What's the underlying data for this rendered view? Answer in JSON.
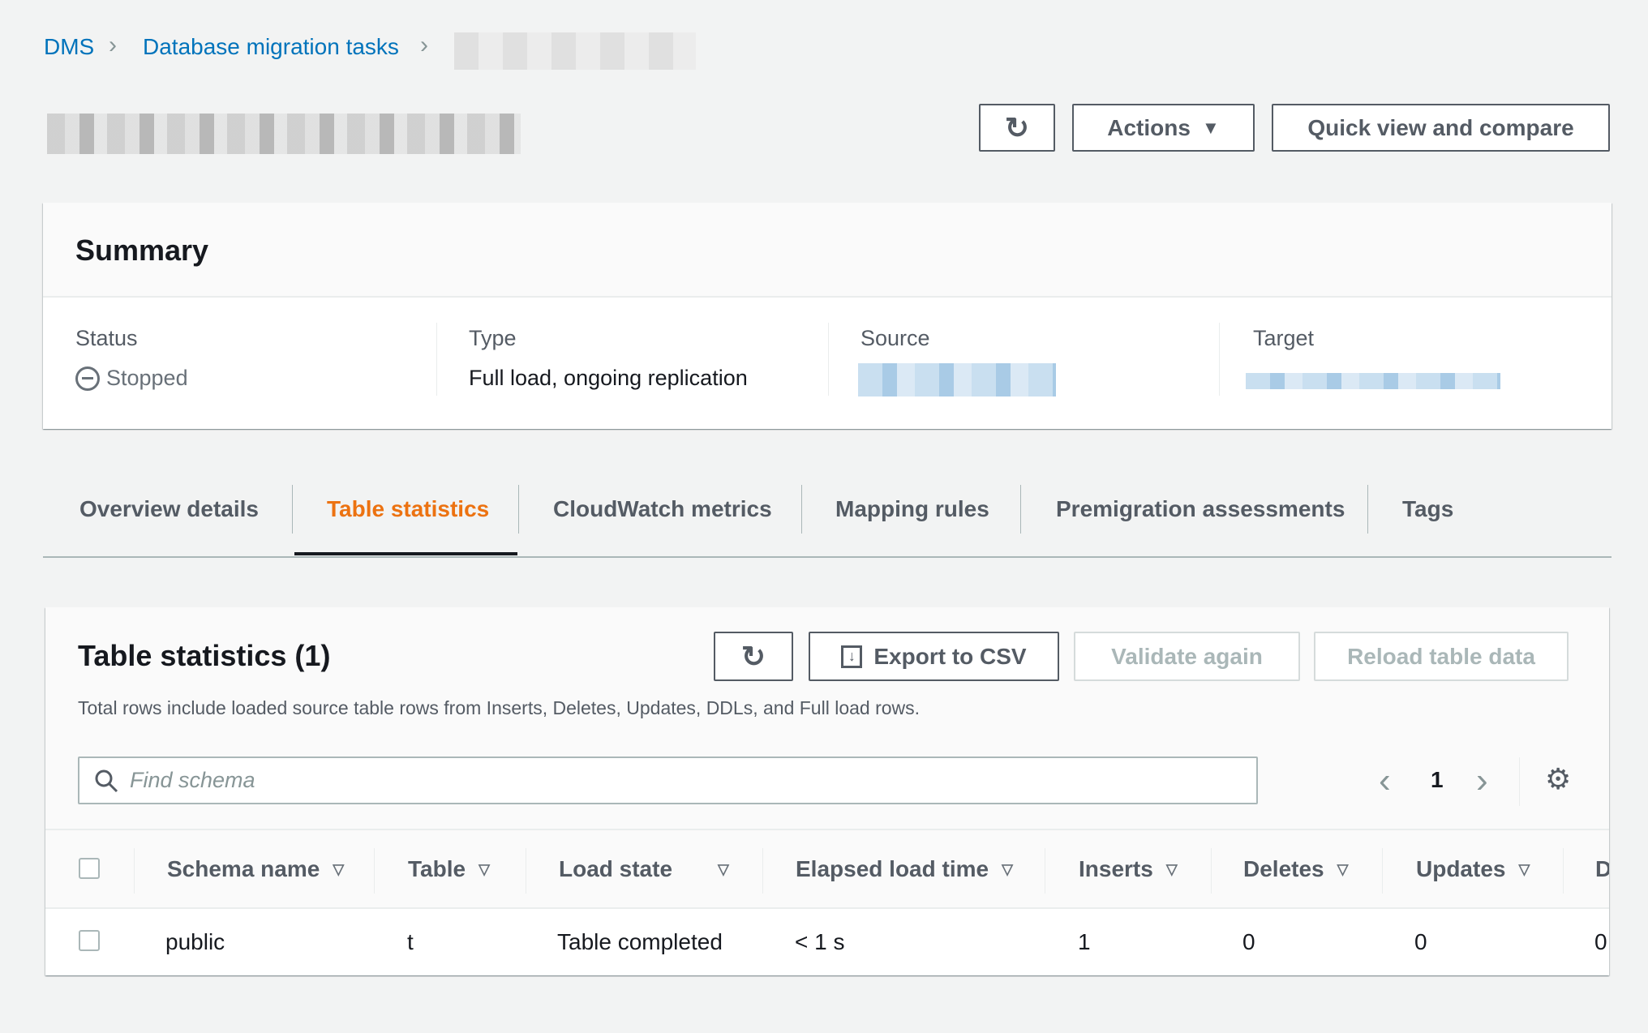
{
  "breadcrumb": {
    "items": [
      "DMS",
      "Database migration tasks"
    ]
  },
  "header": {
    "refresh_icon": "refresh-icon",
    "actions_label": "Actions",
    "quick_view_label": "Quick view and compare"
  },
  "summary": {
    "title": "Summary",
    "status_label": "Status",
    "status_value": "Stopped",
    "type_label": "Type",
    "type_value": "Full load, ongoing replication",
    "source_label": "Source",
    "target_label": "Target"
  },
  "tabs": [
    {
      "label": "Overview details"
    },
    {
      "label": "Table statistics",
      "active": true
    },
    {
      "label": "CloudWatch metrics"
    },
    {
      "label": "Mapping rules"
    },
    {
      "label": "Premigration assessments"
    },
    {
      "label": "Tags"
    }
  ],
  "table_stats": {
    "title": "Table statistics (1)",
    "export_label": "Export to CSV",
    "validate_label": "Validate again",
    "reload_label": "Reload table data",
    "description": "Total rows include loaded source table rows from Inserts, Deletes, Updates, DDLs, and Full load rows.",
    "search_placeholder": "Find schema",
    "page": "1",
    "columns": [
      "Schema name",
      "Table",
      "Load state",
      "Elapsed load time",
      "Inserts",
      "Deletes",
      "Updates",
      "D"
    ],
    "rows": [
      [
        "public",
        "t",
        "Table completed",
        "< 1 s",
        "1",
        "0",
        "0",
        "0"
      ]
    ]
  },
  "colors": {
    "accent": "#ec7211",
    "link": "#0073bb",
    "background": "#f2f3f3"
  }
}
